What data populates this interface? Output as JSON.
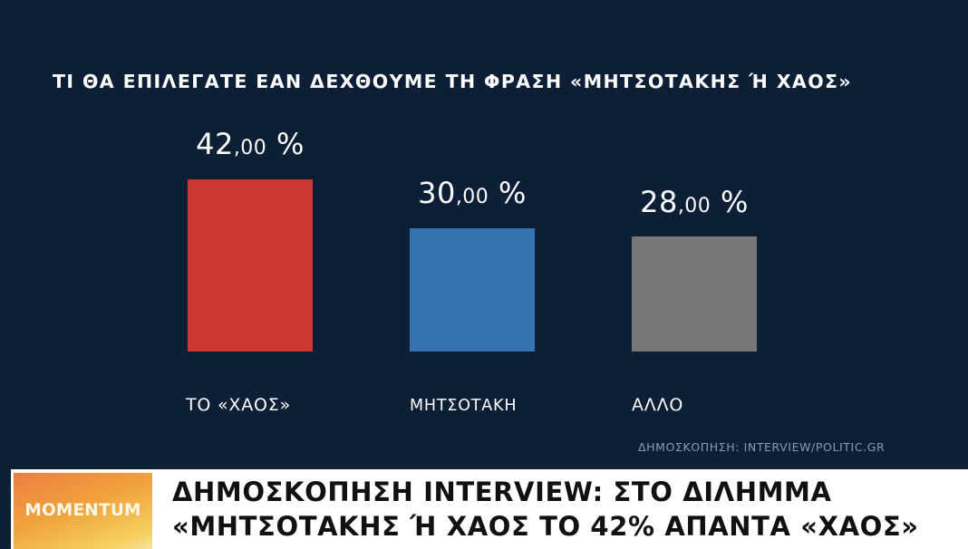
{
  "chart_data": {
    "type": "bar",
    "title": "ΤΙ ΘΑ ΕΠΙΛΕΓΑΤΕ ΕΑΝ ΔΕΧΘΟΥΜΕ ΤΗ ΦΡΑΣΗ «ΜΗΤΣΟΤΑΚΗΣ Ή ΧΑΟΣ»",
    "categories": [
      "ΤΟ «ΧΑΟΣ»",
      "ΜΗΤΣΟΤΑΚΗ",
      "ΑΛΛΟ"
    ],
    "values": [
      42.0,
      30.0,
      28.0
    ],
    "value_labels": [
      {
        "int": "42",
        "dec": ",00",
        "pct": " %"
      },
      {
        "int": "30",
        "dec": ",00",
        "pct": " %"
      },
      {
        "int": "28",
        "dec": ",00",
        "pct": " %"
      }
    ],
    "colors": [
      "#c9392f",
      "#3572b0",
      "#777777"
    ],
    "xlabel": "",
    "ylabel": "",
    "unit": "%",
    "grid": false,
    "legend": "none",
    "source": "ΔΗΜΟΣΚΟΠΗΣΗ: INTERVIEW/POLITIC.GR"
  },
  "lower_third": {
    "brand": "MOMENTUM",
    "headline_line1": "ΔΗΜΟΣΚΟΠΗΣΗ INTERVIEW: ΣΤΟ ΔΙΛΗΜΜΑ",
    "headline_line2": "«ΜΗΤΣΟΤΑΚΗΣ Ή ΧΑΟΣ ΤΟ 42% ΑΠΑΝΤΑ «ΧΑΟΣ»"
  },
  "colors": {
    "background": "#0d1f36",
    "source_text": "#8a9bad",
    "brand_gradient_start": "#ec7e43",
    "brand_gradient_end": "#f8e3a0"
  }
}
